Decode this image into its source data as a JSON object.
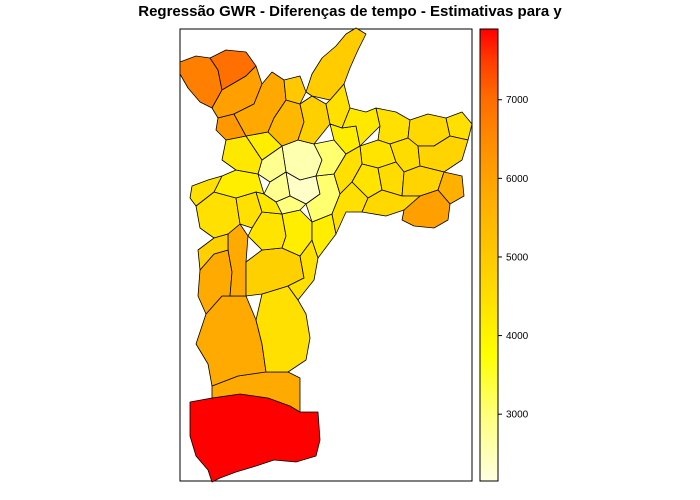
{
  "title": "Regressão GWR - Diferenças de tempo - Estimativas para y",
  "legend": {
    "min": 2150,
    "max": 7900,
    "ticks": [
      {
        "value": 3000,
        "label": "3000"
      },
      {
        "value": 4000,
        "label": "4000"
      },
      {
        "value": 5000,
        "label": "5000"
      },
      {
        "value": 6000,
        "label": "6000"
      },
      {
        "value": 7000,
        "label": "7000"
      }
    ],
    "colors": [
      "#ffffe0",
      "#ffff80",
      "#ffff00",
      "#ffe000",
      "#ffc400",
      "#ffaa00",
      "#ff8c00",
      "#ff6a00",
      "#ff3c00",
      "#ff0000"
    ]
  },
  "map": {
    "background": "#ffffff",
    "border_color": "#000000"
  }
}
